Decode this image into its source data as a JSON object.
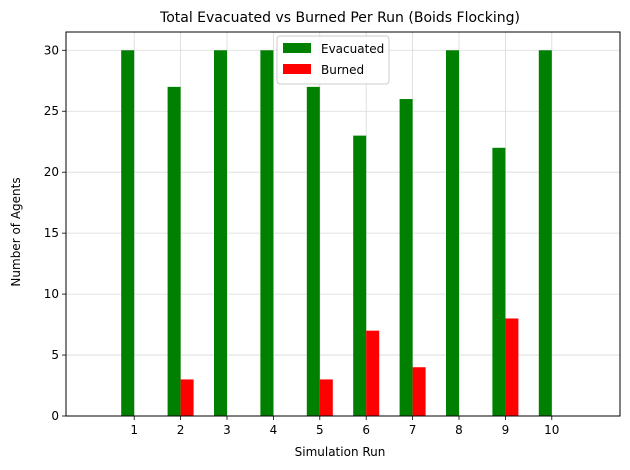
{
  "chart_data": {
    "type": "bar",
    "title": "Total Evacuated vs Burned Per Run (Boids Flocking)",
    "xlabel": "Simulation Run",
    "ylabel": "Number of Agents",
    "categories": [
      "1",
      "2",
      "3",
      "4",
      "5",
      "6",
      "7",
      "8",
      "9",
      "10"
    ],
    "series": [
      {
        "name": "Evacuated",
        "color": "#008000",
        "values": [
          30,
          27,
          30,
          30,
          27,
          23,
          26,
          30,
          22,
          30
        ]
      },
      {
        "name": "Burned",
        "color": "#ff0000",
        "values": [
          0,
          3,
          0,
          0,
          3,
          7,
          4,
          0,
          8,
          0
        ]
      }
    ],
    "ylim": [
      0,
      31.5
    ],
    "yticks": [
      0,
      5,
      10,
      15,
      20,
      25,
      30
    ],
    "grid": true,
    "legend_position": "upper center"
  }
}
